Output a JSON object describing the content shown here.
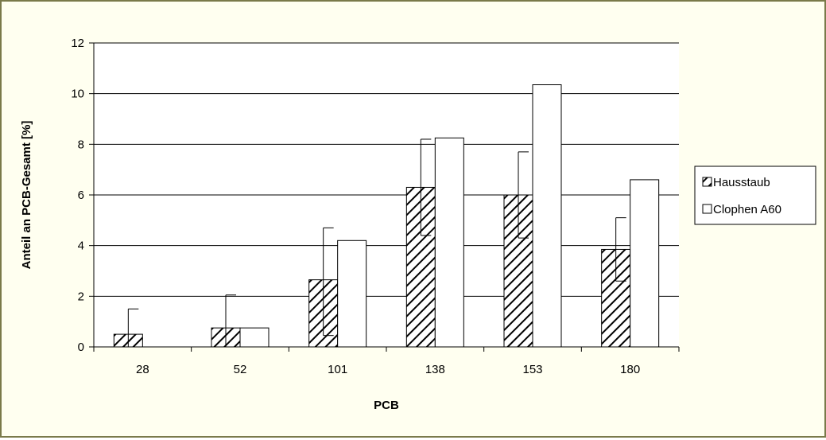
{
  "chart_data": {
    "type": "bar",
    "title": "",
    "xlabel": "PCB",
    "ylabel": "Anteil an PCB-Gesamt [%]",
    "ylim": [
      0,
      12
    ],
    "yticks": [
      "0",
      "2",
      "4",
      "6",
      "8",
      "10",
      "12"
    ],
    "categories": [
      "28",
      "52",
      "101",
      "138",
      "153",
      "180"
    ],
    "grid": true,
    "legend_position": "right",
    "series": [
      {
        "name": "Hausstaub",
        "pattern": "diagonal-hatch",
        "values": [
          0.5,
          0.75,
          2.65,
          6.3,
          6.0,
          3.85
        ],
        "error_plus": [
          1.0,
          1.3,
          2.05,
          1.9,
          1.7,
          1.25
        ],
        "error_minus": [
          1.0,
          0.75,
          2.2,
          1.9,
          1.7,
          1.25
        ]
      },
      {
        "name": "Clophen A60",
        "pattern": "solid-white",
        "values": [
          0,
          0.75,
          4.2,
          8.25,
          10.35,
          6.6
        ]
      }
    ],
    "colors": {
      "frame_border": "#7a7a4a",
      "frame_background": "#fffff0",
      "plot_background": "#ffffff",
      "bar_outline": "#000000",
      "hatch": "#000000"
    }
  }
}
